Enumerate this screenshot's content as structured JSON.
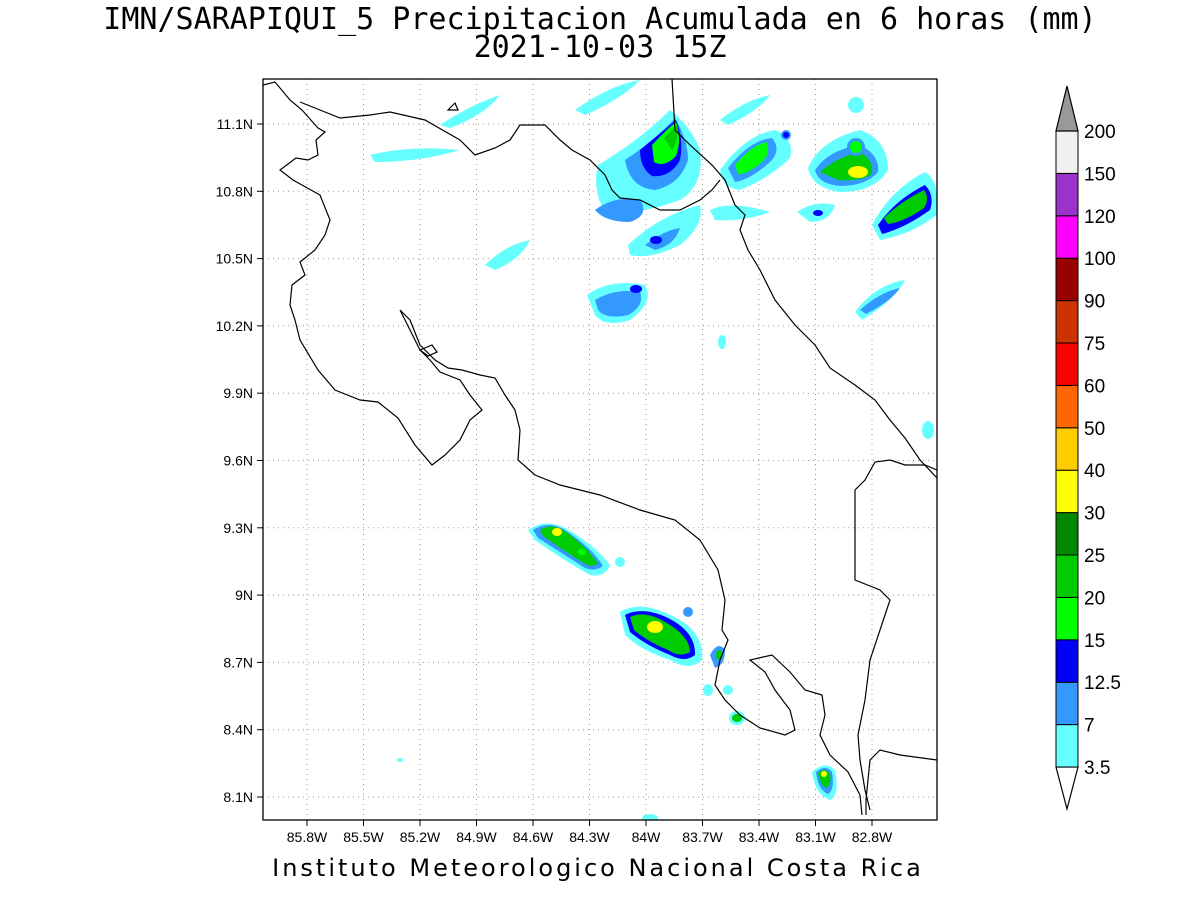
{
  "title": {
    "line1": "IMN/SARAPIQUI_5 Precipitacion Acumulada en 6 horas (mm)",
    "line2": "2021-10-03 15Z"
  },
  "footer": "Instituto Meteorologico Nacional Costa Rica",
  "map": {
    "lon_labels": [
      "85.8W",
      "85.5W",
      "85.2W",
      "84.9W",
      "84.6W",
      "84.3W",
      "84W",
      "83.7W",
      "83.4W",
      "83.1W",
      "82.8W"
    ],
    "lat_labels": [
      "11.1N",
      "10.8N",
      "10.5N",
      "10.2N",
      "9.9N",
      "9.6N",
      "9.3N",
      "9N",
      "8.7N",
      "8.4N",
      "8.1N"
    ],
    "grid": "dotted",
    "coastline_color": "#000000"
  },
  "colorbar": {
    "labels": [
      "3.5",
      "7",
      "12.5",
      "15",
      "20",
      "25",
      "30",
      "40",
      "50",
      "60",
      "75",
      "90",
      "100",
      "120",
      "150",
      "200"
    ],
    "colors": [
      "#66ffff",
      "#3399ff",
      "#0000ff",
      "#00ff00",
      "#00cc00",
      "#008800",
      "#ffff00",
      "#ffcc00",
      "#ff6600",
      "#ff0000",
      "#cc3300",
      "#990000",
      "#ff00ff",
      "#9933cc",
      "#f0f0f0",
      "#999999"
    ],
    "low_arrow_color": "#ffffff",
    "high_arrow_color": "#999999"
  }
}
